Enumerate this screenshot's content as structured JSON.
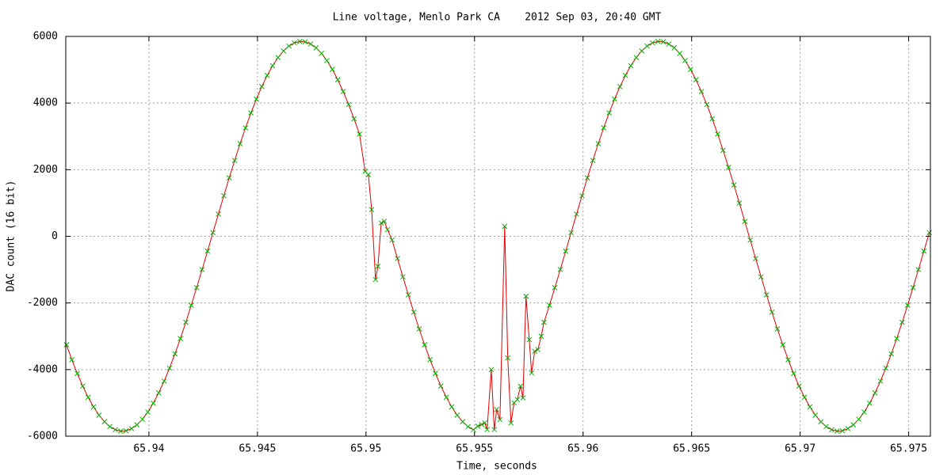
{
  "chart_data": {
    "type": "line",
    "title": "Line voltage, Menlo Park CA    2012 Sep 03, 20:40 GMT",
    "x_label": "Time, seconds",
    "y_label": "DAC count (16 bit)",
    "xlim": [
      65.93617,
      65.976
    ],
    "ylim": [
      -6000,
      6000
    ],
    "xticks": [
      65.94,
      65.945,
      65.95,
      65.955,
      65.96,
      65.965,
      65.97,
      65.975
    ],
    "yticks": [
      -6000,
      -4000,
      -2000,
      0,
      2000,
      4000,
      6000
    ],
    "grid": true,
    "color": "#e00000",
    "marker_color": "#00b000",
    "x": [
      65.9362,
      65.93645,
      65.9367,
      65.93695,
      65.9372,
      65.93745,
      65.9377,
      65.93795,
      65.9382,
      65.93845,
      65.9387,
      65.93895,
      65.9392,
      65.93945,
      65.9397,
      65.93995,
      65.9402,
      65.94045,
      65.9407,
      65.94095,
      65.9412,
      65.94145,
      65.9417,
      65.94195,
      65.9422,
      65.94245,
      65.9427,
      65.94295,
      65.9432,
      65.94345,
      65.9437,
      65.94395,
      65.9442,
      65.94445,
      65.9447,
      65.94495,
      65.9452,
      65.94545,
      65.9457,
      65.94595,
      65.9462,
      65.94645,
      65.9467,
      65.94695,
      65.9472,
      65.94745,
      65.9477,
      65.94795,
      65.9482,
      65.94845,
      65.9487,
      65.94895,
      65.9492,
      65.94945,
      65.9497,
      65.94996,
      65.95011,
      65.95026,
      65.95044,
      65.95055,
      65.9507,
      65.95084,
      65.95099,
      65.9512,
      65.95145,
      65.9517,
      65.95195,
      65.9522,
      65.95245,
      65.9527,
      65.95295,
      65.9532,
      65.95345,
      65.9537,
      65.95395,
      65.9542,
      65.95445,
      65.9547,
      65.95495,
      65.95515,
      65.95533,
      65.95547,
      65.95558,
      65.95577,
      65.95591,
      65.95602,
      65.95617,
      65.95639,
      65.95653,
      65.95668,
      65.95682,
      65.95697,
      65.95712,
      65.95723,
      65.95737,
      65.95752,
      65.95763,
      65.95777,
      65.95792,
      65.95807,
      65.9582,
      65.95845,
      65.9587,
      65.95895,
      65.9592,
      65.95945,
      65.9597,
      65.95995,
      65.9602,
      65.96045,
      65.9607,
      65.96095,
      65.9612,
      65.96145,
      65.9617,
      65.96195,
      65.9622,
      65.96245,
      65.9627,
      65.96295,
      65.9632,
      65.96345,
      65.9637,
      65.96395,
      65.9642,
      65.96445,
      65.9647,
      65.96495,
      65.9652,
      65.96545,
      65.9657,
      65.96595,
      65.9662,
      65.96645,
      65.9667,
      65.96695,
      65.9672,
      65.96745,
      65.9677,
      65.96795,
      65.9682,
      65.96845,
      65.9687,
      65.96895,
      65.9692,
      65.96945,
      65.9697,
      65.96995,
      65.9702,
      65.97045,
      65.9707,
      65.97095,
      65.9712,
      65.97145,
      65.9717,
      65.97195,
      65.9722,
      65.97245,
      65.9727,
      65.97295,
      65.9732,
      65.97345,
      65.9737,
      65.97395,
      65.9742,
      65.97445,
      65.9747,
      65.97495,
      65.9752,
      65.97545,
      65.9757,
      65.97595
    ],
    "values": [
      -3256,
      -3703,
      -4117,
      -4495,
      -4830,
      -5121,
      -5367,
      -5564,
      -5710,
      -5805,
      -5848,
      -5837,
      -5773,
      -5658,
      -5491,
      -5274,
      -5010,
      -4699,
      -4347,
      -3955,
      -3528,
      -3068,
      -2581,
      -2070,
      -1541,
      -997,
      -445,
      111,
      667,
      1216,
      1755,
      2277,
      2780,
      3256,
      3703,
      4117,
      4495,
      4830,
      5121,
      5367,
      5564,
      5710,
      5805,
      5848,
      5837,
      5773,
      5658,
      5491,
      5274,
      5010,
      4699,
      4347,
      3955,
      3528,
      3068,
      1950,
      1850,
      800,
      -1300,
      -900,
      400,
      450,
      200,
      -111,
      -667,
      -1216,
      -1755,
      -2277,
      -2780,
      -3256,
      -3703,
      -4117,
      -4495,
      -4830,
      -5121,
      -5367,
      -5564,
      -5710,
      -5805,
      -5700,
      -5650,
      -5600,
      -5800,
      -4000,
      -5800,
      -5200,
      -5500,
      300,
      -3650,
      -5600,
      -5000,
      -4900,
      -4500,
      -4850,
      -1800,
      -3100,
      -4100,
      -3450,
      -3400,
      -3000,
      -2581,
      -2070,
      -1541,
      -997,
      -445,
      111,
      667,
      1216,
      1755,
      2277,
      2780,
      3256,
      3703,
      4117,
      4495,
      4830,
      5121,
      5367,
      5564,
      5710,
      5805,
      5848,
      5837,
      5773,
      5658,
      5491,
      5274,
      5010,
      4699,
      4347,
      3955,
      3528,
      3068,
      2581,
      2070,
      1541,
      997,
      445,
      -111,
      -667,
      -1216,
      -1755,
      -2277,
      -2780,
      -3256,
      -3703,
      -4117,
      -4495,
      -4830,
      -5121,
      -5367,
      -5564,
      -5710,
      -5805,
      -5848,
      -5837,
      -5773,
      -5658,
      -5491,
      -5274,
      -5010,
      -4699,
      -4347,
      -3955,
      -3528,
      -3068,
      -2581,
      -2070,
      -1541,
      -997,
      -445,
      111
    ]
  }
}
